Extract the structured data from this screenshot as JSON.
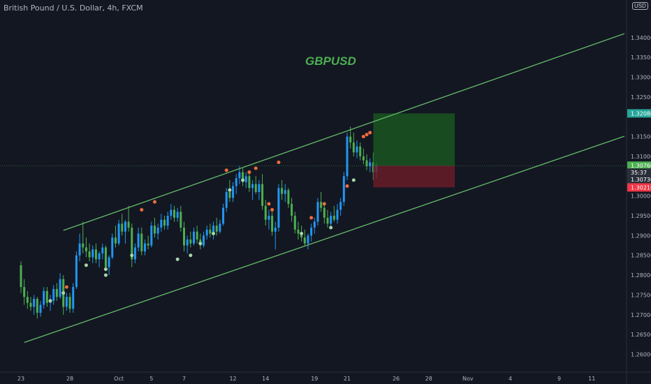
{
  "header": {
    "symbol": "British Pound / U.S. Dollar, 4h, FXCM",
    "currency": "USD",
    "title": "GBPUSD"
  },
  "chart_data": {
    "type": "candlestick",
    "ylim": [
      1.2555,
      1.3495
    ],
    "y_ticks": [
      "1.34000",
      "1.33500",
      "1.33000",
      "1.32500",
      "1.31500",
      "1.31000",
      "1.30000",
      "1.29500",
      "1.29000",
      "1.28500",
      "1.28000",
      "1.27500",
      "1.27000",
      "1.26500",
      "1.26000"
    ],
    "x_ticks": [
      {
        "label": "23",
        "i": 0
      },
      {
        "label": "28",
        "i": 15
      },
      {
        "label": "Oct",
        "i": 30
      },
      {
        "label": "5",
        "i": 40
      },
      {
        "label": "7",
        "i": 50
      },
      {
        "label": "12",
        "i": 65
      },
      {
        "label": "14",
        "i": 75
      },
      {
        "label": "19",
        "i": 90
      },
      {
        "label": "21",
        "i": 100
      },
      {
        "label": "26",
        "i": 115
      },
      {
        "label": "28",
        "i": 125
      },
      {
        "label": "Nov",
        "i": 137
      },
      {
        "label": "4",
        "i": 150
      },
      {
        "label": "9",
        "i": 165
      },
      {
        "label": "11",
        "i": 175
      }
    ],
    "price_tags": [
      {
        "label": "1.32086",
        "value": 1.32086,
        "color": "#26a69a"
      },
      {
        "label": "1.30766",
        "value": 1.30766,
        "color": "#4caf50"
      },
      {
        "label": "35:37",
        "value": 1.3059,
        "color": "#2a2e39"
      },
      {
        "label": "1.30730",
        "value": 1.3042,
        "color": "#2a2e39"
      },
      {
        "label": "1.30216",
        "value": 1.30216,
        "color": "#f23645"
      }
    ],
    "channel": {
      "upper": [
        [
          13,
          1.2913
        ],
        [
          185,
          1.341
        ]
      ],
      "lower": [
        [
          1,
          1.263
        ],
        [
          185,
          1.3151
        ]
      ]
    },
    "position": {
      "i0": 108,
      "i1": 133,
      "target": 1.32086,
      "entry": 1.30766,
      "stop": 1.30216
    },
    "candles": [
      [
        1.2825,
        1.2835,
        1.2755,
        1.277
      ],
      [
        1.277,
        1.279,
        1.2725,
        1.2745
      ],
      [
        1.2745,
        1.276,
        1.2715,
        1.273
      ],
      [
        1.273,
        1.2745,
        1.271,
        1.272
      ],
      [
        1.272,
        1.275,
        1.27,
        1.274
      ],
      [
        1.274,
        1.2745,
        1.269,
        1.2705
      ],
      [
        1.2705,
        1.2735,
        1.2695,
        1.2725
      ],
      [
        1.2725,
        1.277,
        1.2715,
        1.276
      ],
      [
        1.276,
        1.277,
        1.272,
        1.273
      ],
      [
        1.273,
        1.275,
        1.271,
        1.2735
      ],
      [
        1.2735,
        1.2775,
        1.2725,
        1.2765
      ],
      [
        1.2765,
        1.278,
        1.2735,
        1.2745
      ],
      [
        1.2745,
        1.2805,
        1.274,
        1.279
      ],
      [
        1.279,
        1.28,
        1.27,
        1.272
      ],
      [
        1.272,
        1.2755,
        1.271,
        1.2745
      ],
      [
        1.2745,
        1.2755,
        1.2705,
        1.2715
      ],
      [
        1.2715,
        1.278,
        1.2705,
        1.277
      ],
      [
        1.277,
        1.286,
        1.2765,
        1.285
      ],
      [
        1.285,
        1.2905,
        1.2835,
        1.288
      ],
      [
        1.288,
        1.2935,
        1.2855,
        1.287
      ],
      [
        1.287,
        1.2895,
        1.2845,
        1.286
      ],
      [
        1.286,
        1.288,
        1.2835,
        1.2845
      ],
      [
        1.2845,
        1.2875,
        1.283,
        1.2865
      ],
      [
        1.2865,
        1.288,
        1.283,
        1.284
      ],
      [
        1.284,
        1.286,
        1.282,
        1.2855
      ],
      [
        1.2855,
        1.288,
        1.284,
        1.287
      ],
      [
        1.287,
        1.2875,
        1.281,
        1.282
      ],
      [
        1.282,
        1.285,
        1.28,
        1.2845
      ],
      [
        1.2845,
        1.2905,
        1.284,
        1.2895
      ],
      [
        1.2895,
        1.2925,
        1.287,
        1.288
      ],
      [
        1.288,
        1.294,
        1.2875,
        1.293
      ],
      [
        1.293,
        1.2955,
        1.29,
        1.291
      ],
      [
        1.291,
        1.294,
        1.288,
        1.2935
      ],
      [
        1.2935,
        1.2975,
        1.291,
        1.292
      ],
      [
        1.292,
        1.293,
        1.282,
        1.284
      ],
      [
        1.284,
        1.288,
        1.283,
        1.287
      ],
      [
        1.287,
        1.292,
        1.286,
        1.2905
      ],
      [
        1.2905,
        1.292,
        1.285,
        1.286
      ],
      [
        1.286,
        1.289,
        1.285,
        1.288
      ],
      [
        1.288,
        1.29,
        1.2865,
        1.2875
      ],
      [
        1.2875,
        1.2935,
        1.287,
        1.2925
      ],
      [
        1.2925,
        1.2945,
        1.2895,
        1.2905
      ],
      [
        1.2905,
        1.293,
        1.289,
        1.292
      ],
      [
        1.292,
        1.2955,
        1.291,
        1.294
      ],
      [
        1.294,
        1.295,
        1.2915,
        1.2925
      ],
      [
        1.2925,
        1.296,
        1.2915,
        1.295
      ],
      [
        1.295,
        1.298,
        1.294,
        1.2965
      ],
      [
        1.2965,
        1.2975,
        1.2935,
        1.2945
      ],
      [
        1.2945,
        1.297,
        1.2935,
        1.296
      ],
      [
        1.296,
        1.2975,
        1.291,
        1.292
      ],
      [
        1.292,
        1.2935,
        1.286,
        1.2875
      ],
      [
        1.2875,
        1.29,
        1.2855,
        1.289
      ],
      [
        1.289,
        1.291,
        1.287,
        1.288
      ],
      [
        1.288,
        1.292,
        1.2875,
        1.291
      ],
      [
        1.291,
        1.2925,
        1.288,
        1.289
      ],
      [
        1.289,
        1.2905,
        1.2865,
        1.2875
      ],
      [
        1.2875,
        1.291,
        1.287,
        1.29
      ],
      [
        1.29,
        1.2925,
        1.289,
        1.2915
      ],
      [
        1.2915,
        1.293,
        1.2895,
        1.2905
      ],
      [
        1.2905,
        1.2935,
        1.289,
        1.2925
      ],
      [
        1.2925,
        1.2945,
        1.29,
        1.291
      ],
      [
        1.291,
        1.294,
        1.2905,
        1.293
      ],
      [
        1.293,
        1.298,
        1.2925,
        1.297
      ],
      [
        1.297,
        1.302,
        1.296,
        1.301
      ],
      [
        1.301,
        1.304,
        1.2985,
        1.2995
      ],
      [
        1.2995,
        1.3035,
        1.2985,
        1.3025
      ],
      [
        1.3025,
        1.3055,
        1.3005,
        1.3045
      ],
      [
        1.3045,
        1.3075,
        1.303,
        1.306
      ],
      [
        1.306,
        1.307,
        1.3025,
        1.3035
      ],
      [
        1.3035,
        1.306,
        1.302,
        1.305
      ],
      [
        1.305,
        1.3065,
        1.301,
        1.302
      ],
      [
        1.302,
        1.304,
        1.299,
        1.303
      ],
      [
        1.303,
        1.305,
        1.3005,
        1.301
      ],
      [
        1.301,
        1.304,
        1.299,
        1.303
      ],
      [
        1.303,
        1.3055,
        1.2965,
        1.2975
      ],
      [
        1.2975,
        1.299,
        1.2925,
        1.294
      ],
      [
        1.294,
        1.2965,
        1.2915,
        1.295
      ],
      [
        1.295,
        1.296,
        1.29,
        1.291
      ],
      [
        1.291,
        1.2935,
        1.2865,
        1.292
      ],
      [
        1.292,
        1.303,
        1.291,
        1.302
      ],
      [
        1.302,
        1.304,
        1.299,
        1.3005
      ],
      [
        1.3005,
        1.303,
        1.2985,
        1.3015
      ],
      [
        1.3015,
        1.302,
        1.297,
        1.298
      ],
      [
        1.298,
        1.2995,
        1.2935,
        1.295
      ],
      [
        1.295,
        1.296,
        1.2905,
        1.2915
      ],
      [
        1.2915,
        1.2935,
        1.289,
        1.2905
      ],
      [
        1.2905,
        1.2925,
        1.2885,
        1.2895
      ],
      [
        1.2895,
        1.2915,
        1.2875,
        1.288
      ],
      [
        1.288,
        1.2905,
        1.2865,
        1.29
      ],
      [
        1.29,
        1.293,
        1.2885,
        1.292
      ],
      [
        1.292,
        1.2945,
        1.2905,
        1.2935
      ],
      [
        1.2935,
        1.2995,
        1.2925,
        1.2985
      ],
      [
        1.2985,
        1.301,
        1.296,
        1.297
      ],
      [
        1.297,
        1.2985,
        1.293,
        1.2945
      ],
      [
        1.2945,
        1.2965,
        1.292,
        1.293
      ],
      [
        1.293,
        1.296,
        1.292,
        1.295
      ],
      [
        1.295,
        1.2975,
        1.2935,
        1.294
      ],
      [
        1.294,
        1.298,
        1.293,
        1.2965
      ],
      [
        1.2965,
        1.2995,
        1.295,
        1.2985
      ],
      [
        1.2985,
        1.306,
        1.2975,
        1.305
      ],
      [
        1.305,
        1.316,
        1.304,
        1.315
      ],
      [
        1.315,
        1.3175,
        1.312,
        1.3135
      ],
      [
        1.3135,
        1.316,
        1.31,
        1.311
      ],
      [
        1.311,
        1.314,
        1.3095,
        1.3125
      ],
      [
        1.3125,
        1.3135,
        1.309,
        1.31
      ],
      [
        1.31,
        1.312,
        1.308,
        1.309
      ],
      [
        1.309,
        1.3105,
        1.3065,
        1.3075
      ],
      [
        1.3075,
        1.3095,
        1.306,
        1.3085
      ],
      [
        1.3085,
        1.311,
        1.304,
        1.306
      ],
      [
        1.306,
        1.3085,
        1.3045,
        1.3077
      ]
    ],
    "markers": [
      {
        "i": 14,
        "v": 1.277,
        "color": "#ef6c3e"
      },
      {
        "i": 9,
        "v": 1.2735,
        "color": "#a5d6a7"
      },
      {
        "i": 13,
        "v": 1.2755,
        "color": "#a5d6a7"
      },
      {
        "i": 20,
        "v": 1.2825,
        "color": "#a5d6a7"
      },
      {
        "i": 26,
        "v": 1.28,
        "color": "#a5d6a7"
      },
      {
        "i": 26,
        "v": 1.2815,
        "color": "#a5d6a7"
      },
      {
        "i": 34,
        "v": 1.285,
        "color": "#a5d6a7"
      },
      {
        "i": 37,
        "v": 1.2965,
        "color": "#ef6c3e"
      },
      {
        "i": 41,
        "v": 1.2985,
        "color": "#ef6c3e"
      },
      {
        "i": 48,
        "v": 1.284,
        "color": "#a5d6a7"
      },
      {
        "i": 52,
        "v": 1.285,
        "color": "#a5d6a7"
      },
      {
        "i": 55,
        "v": 1.288,
        "color": "#a5d6a7"
      },
      {
        "i": 59,
        "v": 1.2905,
        "color": "#a5d6a7"
      },
      {
        "i": 63,
        "v": 1.3065,
        "color": "#ef6c3e"
      },
      {
        "i": 64,
        "v": 1.3015,
        "color": "#a5d6a7"
      },
      {
        "i": 68,
        "v": 1.304,
        "color": "#a5d6a7"
      },
      {
        "i": 70,
        "v": 1.306,
        "color": "#ef6c3e"
      },
      {
        "i": 72,
        "v": 1.307,
        "color": "#ef6c3e"
      },
      {
        "i": 76,
        "v": 1.298,
        "color": "#ef6c3e"
      },
      {
        "i": 77,
        "v": 1.2965,
        "color": "#ef6c3e"
      },
      {
        "i": 79,
        "v": 1.3085,
        "color": "#ef6c3e"
      },
      {
        "i": 86,
        "v": 1.2905,
        "color": "#a5d6a7"
      },
      {
        "i": 89,
        "v": 1.2945,
        "color": "#ef6c3e"
      },
      {
        "i": 93,
        "v": 1.298,
        "color": "#ef6c3e"
      },
      {
        "i": 95,
        "v": 1.292,
        "color": "#a5d6a7"
      },
      {
        "i": 100,
        "v": 1.3025,
        "color": "#ef6c3e"
      },
      {
        "i": 102,
        "v": 1.304,
        "color": "#a5d6a7"
      },
      {
        "i": 105,
        "v": 1.315,
        "color": "#ef6c3e"
      },
      {
        "i": 106,
        "v": 1.3155,
        "color": "#ef6c3e"
      },
      {
        "i": 107,
        "v": 1.316,
        "color": "#ef6c3e"
      }
    ],
    "colors": {
      "up": "#2196f3",
      "down": "#4caf50",
      "channel": "#66bb6a",
      "target_zone": "#1b5e20",
      "stop_zone": "#6d1b28"
    }
  }
}
